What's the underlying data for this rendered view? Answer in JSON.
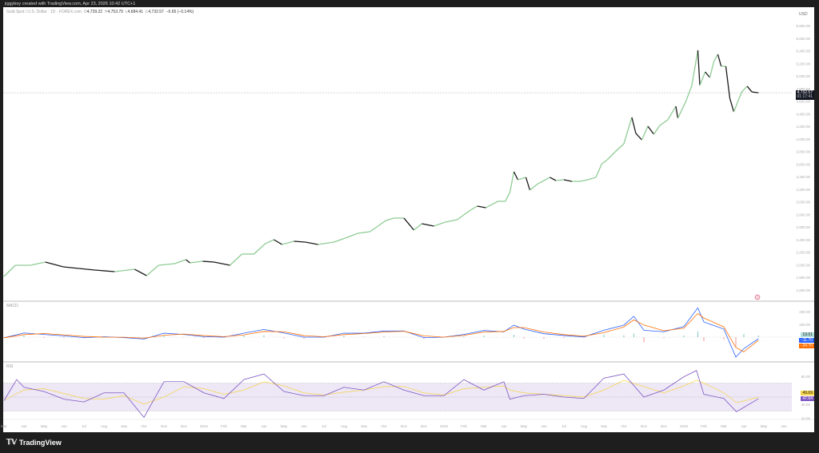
{
  "header": {
    "attribution": "jiggyboy created with TradingView.com, Apr 23, 2026 10:42 UTC+1"
  },
  "legend": {
    "symbol": "Gold Spot / U.S. Dollar · 1D · FOREX.com",
    "o_label": "O",
    "o": "4,739.22",
    "h_label": "H",
    "h": "4,753.79",
    "l_label": "L",
    "l": "4,684.41",
    "c_label": "C",
    "c": "4,732.57",
    "change": "−6.65 (−0.14%)"
  },
  "price_axis": {
    "currency": "USD",
    "last_price": "4,732.57",
    "countdown": "01:17:41"
  },
  "brand": {
    "name": "TradingView"
  },
  "colors": {
    "up": "#8fcc94",
    "down": "#1a1a1a",
    "macd": "#2962ff",
    "signal": "#ff6d00",
    "hist_pos": "#26a69a",
    "hist_neg": "#ef5350",
    "rsi": "#7e57c2",
    "rsi_ma": "#f7d44a",
    "rsi_band": "#ede7f6"
  },
  "chart_data": [
    {
      "type": "candlestick-line",
      "title": "",
      "ylim": [
        1500,
        5900
      ],
      "y_ticks": [
        "5,800.00",
        "5,600.00",
        "5,400.00",
        "5,200.00",
        "5,000.00",
        "4,800.00",
        "4,600.00",
        "4,400.00",
        "4,200.00",
        "4,000.00",
        "3,800.00",
        "3,600.00",
        "3,400.00",
        "3,200.00",
        "3,000.00",
        "2,800.00",
        "2,600.00",
        "2,400.00",
        "2,200.00",
        "2,000.00",
        "1,800.00",
        "1,600.00"
      ],
      "x_ticks": [
        "Mar",
        "Apr",
        "May",
        "Jun",
        "Jul",
        "Aug",
        "Sep",
        "Oct",
        "Nov",
        "Dec",
        "2024",
        "Feb",
        "Mar",
        "Apr",
        "May",
        "Jun",
        "Jul",
        "Aug",
        "Sep",
        "Oct",
        "Nov",
        "Dec",
        "2025",
        "Feb",
        "Mar",
        "Apr",
        "May",
        "Jun",
        "Jul",
        "Aug",
        "Sep",
        "Oct",
        "Nov",
        "Dec",
        "2026",
        "Feb",
        "Mar",
        "Apr",
        "May",
        "Jun"
      ],
      "x_start": "2023-03",
      "series": [
        [
          "2023-03-01",
          1815
        ],
        [
          "2023-03-18",
          1993
        ],
        [
          "2023-04-11",
          1993
        ],
        [
          "2023-05-03",
          2044
        ],
        [
          "2023-05-30",
          1968
        ],
        [
          "2023-06-23",
          1942
        ],
        [
          "2023-07-17",
          1917
        ],
        [
          "2023-08-17",
          1891
        ],
        [
          "2023-09-17",
          1929
        ],
        [
          "2023-10-05",
          1828
        ],
        [
          "2023-10-23",
          1993
        ],
        [
          "2023-11-17",
          2018
        ],
        [
          "2023-12-04",
          2082
        ],
        [
          "2023-12-10",
          2031
        ],
        [
          "2023-12-29",
          2056
        ],
        [
          "2024-01-16",
          2044
        ],
        [
          "2024-02-10",
          1993
        ],
        [
          "2024-02-28",
          2171
        ],
        [
          "2024-03-16",
          2171
        ],
        [
          "2024-04-03",
          2336
        ],
        [
          "2024-04-16",
          2399
        ],
        [
          "2024-04-28",
          2323
        ],
        [
          "2024-05-16",
          2374
        ],
        [
          "2024-06-03",
          2361
        ],
        [
          "2024-06-22",
          2323
        ],
        [
          "2024-07-16",
          2361
        ],
        [
          "2024-08-03",
          2424
        ],
        [
          "2024-08-22",
          2501
        ],
        [
          "2024-09-10",
          2526
        ],
        [
          "2024-09-22",
          2615
        ],
        [
          "2024-10-04",
          2704
        ],
        [
          "2024-10-16",
          2742
        ],
        [
          "2024-11-01",
          2742
        ],
        [
          "2024-11-10",
          2628
        ],
        [
          "2024-11-16",
          2551
        ],
        [
          "2024-11-28",
          2653
        ],
        [
          "2024-12-16",
          2615
        ],
        [
          "2025-01-03",
          2678
        ],
        [
          "2025-01-21",
          2716
        ],
        [
          "2025-02-09",
          2856
        ],
        [
          "2025-02-21",
          2932
        ],
        [
          "2025-03-04",
          2907
        ],
        [
          "2025-03-22",
          3008
        ],
        [
          "2025-04-03",
          3008
        ],
        [
          "2025-04-10",
          3148
        ],
        [
          "2025-04-16",
          3478
        ],
        [
          "2025-04-22",
          3351
        ],
        [
          "2025-05-04",
          3389
        ],
        [
          "2025-05-10",
          3186
        ],
        [
          "2025-05-22",
          3287
        ],
        [
          "2025-06-10",
          3389
        ],
        [
          "2025-06-19",
          3338
        ],
        [
          "2025-07-01",
          3351
        ],
        [
          "2025-07-13",
          3325
        ],
        [
          "2025-07-25",
          3325
        ],
        [
          "2025-08-07",
          3351
        ],
        [
          "2025-08-19",
          3389
        ],
        [
          "2025-08-28",
          3605
        ],
        [
          "2025-09-06",
          3668
        ],
        [
          "2025-09-18",
          3795
        ],
        [
          "2025-10-01",
          3922
        ],
        [
          "2025-10-13",
          4341
        ],
        [
          "2025-10-19",
          4087
        ],
        [
          "2025-10-28",
          3985
        ],
        [
          "2025-11-07",
          4201
        ],
        [
          "2025-11-16",
          4074
        ],
        [
          "2025-11-25",
          4214
        ],
        [
          "2025-12-07",
          4303
        ],
        [
          "2025-12-19",
          4518
        ],
        [
          "2025-12-22",
          4328
        ],
        [
          "2026-01-04",
          4594
        ],
        [
          "2026-01-13",
          4848
        ],
        [
          "2026-01-22",
          5407
        ],
        [
          "2026-01-25",
          4848
        ],
        [
          "2026-02-03",
          5064
        ],
        [
          "2026-02-10",
          4975
        ],
        [
          "2026-02-16",
          5229
        ],
        [
          "2026-02-22",
          5343
        ],
        [
          "2026-02-27",
          5153
        ],
        [
          "2026-03-04",
          5153
        ],
        [
          "2026-03-10",
          4645
        ],
        [
          "2026-03-16",
          4429
        ],
        [
          "2026-03-22",
          4594
        ],
        [
          "2026-03-28",
          4747
        ],
        [
          "2026-04-06",
          4836
        ],
        [
          "2026-04-13",
          4747
        ],
        [
          "2026-04-23",
          4732.57
        ]
      ],
      "last_price": 4732.57
    },
    {
      "type": "line",
      "title": "MACD",
      "y_ticks": [
        200,
        100
      ],
      "ylim": [
        -200,
        220
      ],
      "last_values": {
        "histogram": "13.01",
        "macd": "−11.70",
        "signal": "−24.70"
      },
      "series": [
        [
          "2023-03-01",
          -5,
          -5
        ],
        [
          "2023-04-01",
          33,
          20
        ],
        [
          "2023-05-01",
          21,
          28
        ],
        [
          "2023-06-01",
          10,
          18
        ],
        [
          "2023-07-01",
          -4,
          6
        ],
        [
          "2023-08-01",
          3,
          0
        ],
        [
          "2023-09-01",
          -4,
          -1
        ],
        [
          "2023-10-01",
          -15,
          -8
        ],
        [
          "2023-11-01",
          31,
          15
        ],
        [
          "2023-12-01",
          21,
          24
        ],
        [
          "2024-01-01",
          4,
          12
        ],
        [
          "2024-02-01",
          0,
          4
        ],
        [
          "2024-03-01",
          31,
          18
        ],
        [
          "2024-04-01",
          60,
          45
        ],
        [
          "2024-05-01",
          33,
          42
        ],
        [
          "2024-06-01",
          0,
          12
        ],
        [
          "2024-07-01",
          0,
          3
        ],
        [
          "2024-08-01",
          31,
          20
        ],
        [
          "2024-09-01",
          31,
          28
        ],
        [
          "2024-10-01",
          48,
          40
        ],
        [
          "2024-11-01",
          48,
          46
        ],
        [
          "2024-12-01",
          -4,
          10
        ],
        [
          "2025-01-01",
          0,
          0
        ],
        [
          "2025-02-01",
          21,
          14
        ],
        [
          "2025-03-01",
          52,
          40
        ],
        [
          "2025-04-01",
          42,
          45
        ],
        [
          "2025-04-16",
          94,
          75
        ],
        [
          "2025-05-01",
          63,
          75
        ],
        [
          "2025-06-01",
          27,
          40
        ],
        [
          "2025-07-01",
          13,
          20
        ],
        [
          "2025-08-01",
          2,
          8
        ],
        [
          "2025-09-01",
          54,
          35
        ],
        [
          "2025-10-01",
          94,
          80
        ],
        [
          "2025-10-16",
          163,
          135
        ],
        [
          "2025-11-01",
          54,
          95
        ],
        [
          "2025-12-01",
          42,
          50
        ],
        [
          "2026-01-01",
          83,
          70
        ],
        [
          "2026-01-22",
          229,
          185
        ],
        [
          "2026-02-01",
          119,
          150
        ],
        [
          "2026-03-01",
          63,
          80
        ],
        [
          "2026-03-19",
          -156,
          -80
        ],
        [
          "2026-04-01",
          -90,
          -115
        ],
        [
          "2026-04-23",
          -11.7,
          -24.7
        ]
      ]
    },
    {
      "type": "line",
      "title": "RSI",
      "y_ticks": [
        "80.00",
        "40.00",
        "20.00"
      ],
      "bands": [
        70,
        50,
        30
      ],
      "last_values": {
        "rsi_ma": "49.69",
        "rsi": "47.64"
      },
      "series": [
        [
          "2023-03-01",
          45,
          45
        ],
        [
          "2023-03-20",
          75,
          55
        ],
        [
          "2023-04-01",
          64,
          60
        ],
        [
          "2023-05-01",
          58,
          62
        ],
        [
          "2023-06-01",
          47,
          55
        ],
        [
          "2023-07-01",
          43,
          48
        ],
        [
          "2023-08-01",
          56,
          47
        ],
        [
          "2023-09-01",
          56,
          52
        ],
        [
          "2023-10-01",
          21,
          40
        ],
        [
          "2023-11-01",
          72,
          50
        ],
        [
          "2023-12-01",
          72,
          65
        ],
        [
          "2024-01-01",
          56,
          62
        ],
        [
          "2024-02-01",
          48,
          54
        ],
        [
          "2024-03-01",
          75,
          60
        ],
        [
          "2024-04-01",
          83,
          72
        ],
        [
          "2024-05-01",
          58,
          66
        ],
        [
          "2024-06-01",
          52,
          56
        ],
        [
          "2024-07-01",
          52,
          53
        ],
        [
          "2024-08-01",
          64,
          57
        ],
        [
          "2024-09-01",
          60,
          60
        ],
        [
          "2024-10-01",
          72,
          65
        ],
        [
          "2024-11-01",
          60,
          65
        ],
        [
          "2024-12-01",
          52,
          56
        ],
        [
          "2025-01-01",
          52,
          53
        ],
        [
          "2025-02-01",
          75,
          62
        ],
        [
          "2025-03-01",
          60,
          64
        ],
        [
          "2025-04-01",
          72,
          66
        ],
        [
          "2025-04-10",
          47,
          60
        ],
        [
          "2025-05-01",
          52,
          56
        ],
        [
          "2025-06-01",
          54,
          54
        ],
        [
          "2025-07-01",
          50,
          52
        ],
        [
          "2025-08-01",
          48,
          50
        ],
        [
          "2025-09-01",
          77,
          60
        ],
        [
          "2025-10-01",
          83,
          74
        ],
        [
          "2025-11-01",
          50,
          65
        ],
        [
          "2025-12-01",
          60,
          56
        ],
        [
          "2026-01-01",
          79,
          66
        ],
        [
          "2026-01-20",
          88,
          74
        ],
        [
          "2026-02-01",
          54,
          70
        ],
        [
          "2026-03-01",
          48,
          56
        ],
        [
          "2026-03-20",
          29,
          42
        ],
        [
          "2026-04-23",
          47.64,
          49.69
        ]
      ]
    }
  ]
}
